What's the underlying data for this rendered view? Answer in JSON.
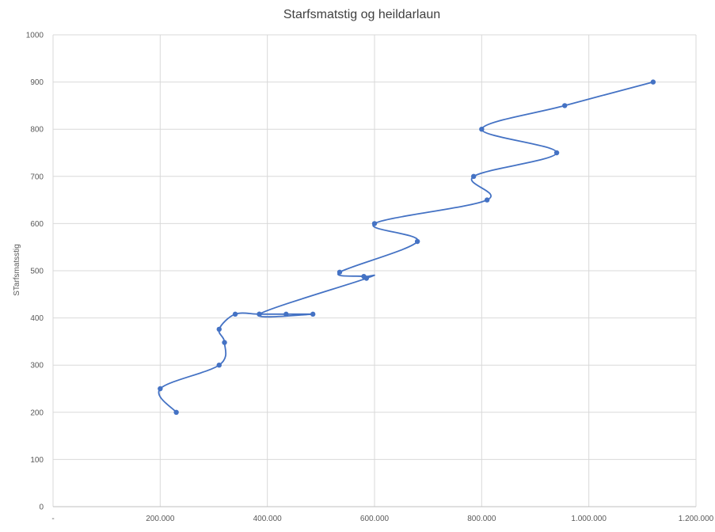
{
  "chart_data": {
    "type": "scatter",
    "title": "Starfsmatstig og heildarlaun",
    "xlabel": "",
    "ylabel": "STarfsmatsstig",
    "xlim": [
      0,
      1200000
    ],
    "ylim": [
      0,
      1000
    ],
    "x_ticks": [
      "-",
      "200.000",
      "400.000",
      "600.000",
      "800.000",
      "1.000.000",
      "1.200.000"
    ],
    "y_ticks": [
      "0",
      "100",
      "200",
      "300",
      "400",
      "500",
      "600",
      "700",
      "800",
      "900",
      "1000"
    ],
    "grid": true,
    "smoothed_line": true,
    "series_color": "#4472c4",
    "series": [
      {
        "x": [
          230000,
          200000,
          310000,
          320000,
          310000,
          340000,
          385000,
          435000,
          485000,
          385000,
          585000,
          580000,
          535000,
          680000,
          600000,
          810000,
          785000,
          940000,
          800000,
          955000,
          1120000
        ],
        "y": [
          200,
          250,
          300,
          348,
          376,
          408,
          408,
          408,
          408,
          408,
          484,
          488,
          497,
          562,
          600,
          650,
          700,
          750,
          800,
          850,
          900
        ]
      }
    ]
  }
}
